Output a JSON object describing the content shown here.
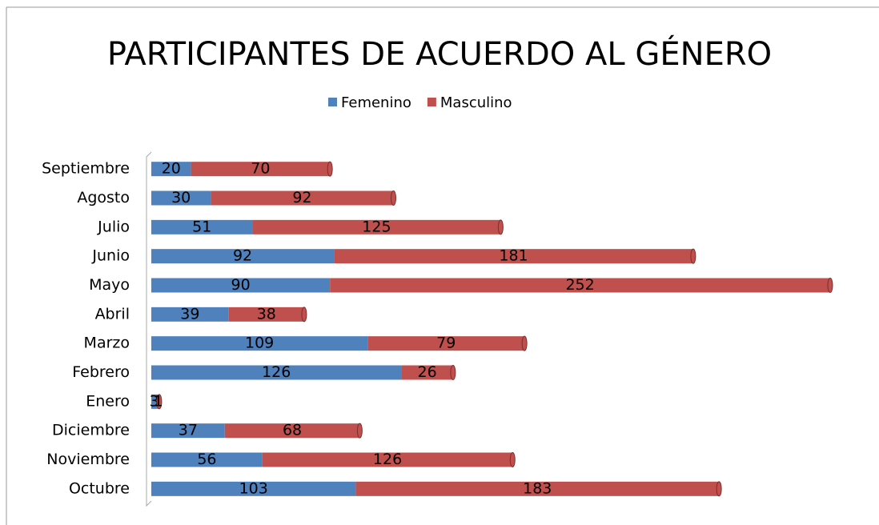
{
  "chart_data": {
    "type": "bar",
    "orientation": "horizontal",
    "stacked": true,
    "title": "PARTICIPANTES DE ACUERDO AL GÉNERO",
    "categories": [
      "Septiembre",
      "Agosto",
      "Julio",
      "Junio",
      "Mayo",
      "Abril",
      "Marzo",
      "Febrero",
      "Enero",
      "Diciembre",
      "Noviembre",
      "Octubre"
    ],
    "series": [
      {
        "name": "Femenino",
        "color": "#4f81bd",
        "values": [
          20,
          30,
          51,
          92,
          90,
          39,
          109,
          126,
          3,
          37,
          56,
          103
        ]
      },
      {
        "name": "Masculino",
        "color": "#c0504d",
        "values": [
          70,
          92,
          125,
          181,
          252,
          38,
          79,
          26,
          1,
          68,
          126,
          183
        ]
      }
    ],
    "legend": "top"
  }
}
